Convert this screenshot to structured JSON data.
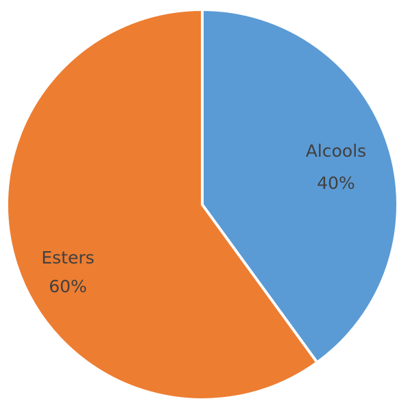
{
  "chart_data": {
    "type": "pie",
    "title": "",
    "slices": [
      {
        "label": "Alcools",
        "value": 40,
        "percent_label": "40%",
        "color": "#5B9BD5"
      },
      {
        "label": "Esters",
        "value": 60,
        "percent_label": "60%",
        "color": "#ED7D31"
      }
    ],
    "legend": "none",
    "start_angle": "12 o'clock",
    "direction": "clockwise"
  }
}
